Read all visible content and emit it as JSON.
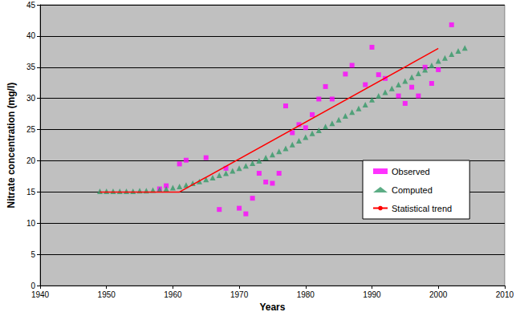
{
  "chart_data": {
    "type": "scatter",
    "x_label": "Years",
    "y_label": "Nitrate concentration (mg/l)",
    "xlim": [
      1940,
      2010
    ],
    "xticks": [
      1940,
      1950,
      1960,
      1970,
      1980,
      1990,
      2000,
      2010
    ],
    "ylim": [
      0,
      45
    ],
    "yticks": [
      0,
      5,
      10,
      15,
      20,
      25,
      30,
      35,
      40,
      45
    ],
    "grid": "y",
    "legend": "right",
    "series": [
      {
        "name": "Observed",
        "type": "scatter",
        "marker": "square",
        "color": "#ff00ff",
        "x": [
          1958,
          1959,
          1961,
          1962,
          1965,
          1967,
          1968,
          1970,
          1971,
          1972,
          1973,
          1974,
          1975,
          1976,
          1977,
          1978,
          1979,
          1980,
          1981,
          1982,
          1983,
          1984,
          1986,
          1987,
          1989,
          1990,
          1991,
          1992,
          1994,
          1995,
          1996,
          1997,
          1998,
          1999,
          2000,
          2002
        ],
        "values": [
          15.5,
          16,
          19.5,
          20.1,
          20.5,
          12.2,
          18.8,
          12.4,
          11.5,
          14,
          18,
          16.6,
          16.4,
          18,
          28.8,
          24.5,
          25.8,
          25.3,
          27.4,
          29.9,
          31.9,
          29.9,
          33.9,
          35.3,
          32.2,
          38.2,
          33.8,
          33.2,
          30.4,
          29.2,
          31.8,
          30.4,
          35,
          32.4,
          34.6,
          41.8
        ]
      },
      {
        "name": "Computed",
        "type": "scatter",
        "marker": "triangle",
        "color": "#339966",
        "x": [
          1949,
          1950,
          1951,
          1952,
          1953,
          1954,
          1955,
          1956,
          1957,
          1958,
          1959,
          1960,
          1961,
          1962,
          1963,
          1964,
          1965,
          1966,
          1967,
          1968,
          1969,
          1970,
          1971,
          1972,
          1973,
          1974,
          1975,
          1976,
          1977,
          1978,
          1979,
          1980,
          1981,
          1982,
          1983,
          1984,
          1985,
          1986,
          1987,
          1988,
          1989,
          1990,
          1991,
          1992,
          1993,
          1994,
          1995,
          1996,
          1997,
          1998,
          1999,
          2000,
          2001,
          2002,
          2003,
          2004
        ],
        "values": [
          15.1,
          15.1,
          15.1,
          15.1,
          15.1,
          15.1,
          15.2,
          15.2,
          15.3,
          15.4,
          15.5,
          15.7,
          15.9,
          16.1,
          16.4,
          16.7,
          17.0,
          17.3,
          17.7,
          18.0,
          18.4,
          18.8,
          19.2,
          19.6,
          20.0,
          20.5,
          21.0,
          21.5,
          22.0,
          22.6,
          23.2,
          23.8,
          24.4,
          24.9,
          25.5,
          26.0,
          26.6,
          27.2,
          27.8,
          28.4,
          29.0,
          29.8,
          30.4,
          31.0,
          31.6,
          32.2,
          32.8,
          33.4,
          34.0,
          34.6,
          35.3,
          36.0,
          36.5,
          37.1,
          37.6,
          38.1
        ]
      },
      {
        "name": "Statistical trend",
        "type": "line",
        "marker": "none",
        "line_style": "solid",
        "color": "#ff0000",
        "x": [
          1949,
          1961,
          2000
        ],
        "values": [
          15,
          15,
          38
        ]
      }
    ]
  }
}
